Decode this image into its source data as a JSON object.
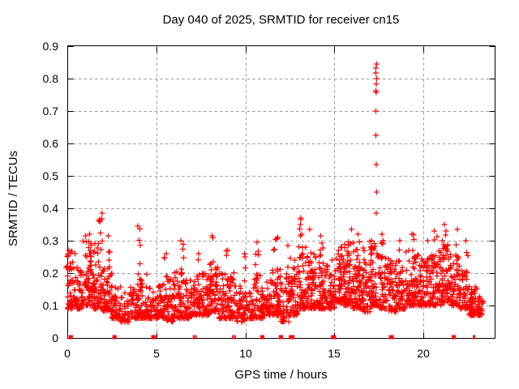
{
  "window": {
    "title": "Day 040 of 2025, SRMTID for receiver cn15"
  },
  "chart_data": {
    "type": "scatter",
    "title": "Day 040 of 2025, SRMTID for receiver cn15",
    "xlabel": "GPS time / hours",
    "ylabel": "SRMTID / TECUs",
    "xlim": [
      0,
      24
    ],
    "ylim": [
      0,
      0.9
    ],
    "xticks": [
      0,
      5,
      10,
      15,
      20
    ],
    "xtick_labels": [
      "0",
      "5",
      "10",
      "15",
      "20"
    ],
    "yticks": [
      0,
      0.1,
      0.2,
      0.3,
      0.4,
      0.5,
      0.6,
      0.7,
      0.8,
      0.9
    ],
    "ytick_labels": [
      "0",
      "0.1",
      "0.2",
      "0.3",
      "0.4",
      "0.5",
      "0.6",
      "0.7",
      "0.8",
      "0.9"
    ],
    "grid": true,
    "legend": "none",
    "marker": {
      "shape": "plus",
      "color": "#ff0000",
      "size": 7
    },
    "axis_color": "#000000",
    "grid_color": "#9b9b9b",
    "background": "#ffffff",
    "seed": 20250409,
    "spike": {
      "t": 17.35,
      "values": [
        0.845,
        0.832,
        0.818,
        0.8,
        0.784,
        0.763,
        0.757,
        0.7,
        0.625,
        0.535,
        0.45,
        0.385
      ]
    },
    "band_bins": [
      [
        0.0,
        0.5,
        55,
        0.09,
        0.27
      ],
      [
        0.5,
        1.0,
        50,
        0.09,
        0.22
      ],
      [
        1.0,
        1.5,
        55,
        0.1,
        0.3
      ],
      [
        1.5,
        2.0,
        55,
        0.09,
        0.3
      ],
      [
        2.0,
        2.5,
        48,
        0.08,
        0.24
      ],
      [
        2.5,
        3.0,
        45,
        0.06,
        0.16
      ],
      [
        3.0,
        3.5,
        40,
        0.05,
        0.14
      ],
      [
        3.5,
        4.0,
        45,
        0.06,
        0.16
      ],
      [
        4.0,
        4.5,
        48,
        0.06,
        0.2
      ],
      [
        4.5,
        5.0,
        45,
        0.06,
        0.16
      ],
      [
        5.0,
        5.5,
        45,
        0.06,
        0.17
      ],
      [
        5.5,
        6.0,
        48,
        0.05,
        0.19
      ],
      [
        6.0,
        6.5,
        50,
        0.06,
        0.21
      ],
      [
        6.5,
        7.0,
        45,
        0.06,
        0.18
      ],
      [
        7.0,
        7.5,
        45,
        0.07,
        0.18
      ],
      [
        7.5,
        8.0,
        48,
        0.07,
        0.2
      ],
      [
        8.0,
        8.5,
        50,
        0.08,
        0.23
      ],
      [
        8.5,
        9.0,
        45,
        0.06,
        0.2
      ],
      [
        9.0,
        9.5,
        48,
        0.06,
        0.21
      ],
      [
        9.5,
        10.0,
        45,
        0.05,
        0.17
      ],
      [
        10.0,
        10.5,
        45,
        0.06,
        0.16
      ],
      [
        10.5,
        11.0,
        48,
        0.06,
        0.2
      ],
      [
        11.0,
        11.5,
        45,
        0.07,
        0.18
      ],
      [
        11.5,
        12.0,
        50,
        0.07,
        0.23
      ],
      [
        12.0,
        12.5,
        45,
        0.05,
        0.2
      ],
      [
        12.5,
        13.0,
        50,
        0.07,
        0.24
      ],
      [
        13.0,
        13.5,
        55,
        0.09,
        0.28
      ],
      [
        13.5,
        14.0,
        50,
        0.09,
        0.26
      ],
      [
        14.0,
        14.5,
        52,
        0.09,
        0.26
      ],
      [
        14.5,
        15.0,
        48,
        0.09,
        0.24
      ],
      [
        15.0,
        15.5,
        55,
        0.11,
        0.28
      ],
      [
        15.5,
        16.0,
        60,
        0.1,
        0.3
      ],
      [
        16.0,
        16.5,
        60,
        0.09,
        0.3
      ],
      [
        16.5,
        17.0,
        55,
        0.08,
        0.28
      ],
      [
        17.0,
        17.5,
        55,
        0.1,
        0.3
      ],
      [
        17.5,
        18.0,
        50,
        0.09,
        0.27
      ],
      [
        18.0,
        18.5,
        52,
        0.08,
        0.26
      ],
      [
        18.5,
        19.0,
        48,
        0.09,
        0.25
      ],
      [
        19.0,
        19.5,
        52,
        0.1,
        0.28
      ],
      [
        19.5,
        20.0,
        52,
        0.1,
        0.28
      ],
      [
        20.0,
        20.5,
        52,
        0.1,
        0.26
      ],
      [
        20.5,
        21.0,
        52,
        0.1,
        0.27
      ],
      [
        21.0,
        21.5,
        58,
        0.11,
        0.3
      ],
      [
        21.5,
        22.0,
        52,
        0.1,
        0.28
      ],
      [
        22.0,
        22.5,
        46,
        0.09,
        0.24
      ],
      [
        22.5,
        23.0,
        50,
        0.07,
        0.16
      ],
      [
        23.0,
        23.35,
        32,
        0.07,
        0.13
      ]
    ],
    "columns": [
      [
        0.05,
        0.27,
        5
      ],
      [
        1.0,
        0.315,
        8
      ],
      [
        1.3,
        0.32,
        7
      ],
      [
        1.85,
        0.385,
        10
      ],
      [
        2.3,
        0.315,
        7
      ],
      [
        4.05,
        0.345,
        9
      ],
      [
        5.5,
        0.26,
        6
      ],
      [
        6.45,
        0.3,
        7
      ],
      [
        7.3,
        0.26,
        5
      ],
      [
        8.1,
        0.315,
        8
      ],
      [
        9.0,
        0.27,
        6
      ],
      [
        10.05,
        0.26,
        5
      ],
      [
        10.65,
        0.295,
        7
      ],
      [
        11.7,
        0.31,
        8
      ],
      [
        12.45,
        0.285,
        6
      ],
      [
        13.1,
        0.37,
        10
      ],
      [
        13.7,
        0.335,
        8
      ],
      [
        14.3,
        0.315,
        7
      ],
      [
        15.9,
        0.335,
        8
      ],
      [
        16.35,
        0.32,
        7
      ],
      [
        17.05,
        0.3,
        6
      ],
      [
        17.7,
        0.32,
        7
      ],
      [
        18.6,
        0.3,
        6
      ],
      [
        19.45,
        0.32,
        7
      ],
      [
        20.15,
        0.3,
        6
      ],
      [
        20.65,
        0.33,
        7
      ],
      [
        21.25,
        0.35,
        8
      ],
      [
        21.9,
        0.335,
        7
      ],
      [
        22.4,
        0.3,
        6
      ]
    ],
    "rug": [
      [
        0.2,
        5
      ],
      [
        2.65,
        5
      ],
      [
        4.85,
        6
      ],
      [
        7.1,
        2
      ],
      [
        7.22,
        2
      ],
      [
        9.3,
        2
      ],
      [
        9.42,
        2
      ],
      [
        10.95,
        5
      ],
      [
        12.0,
        5
      ],
      [
        12.6,
        7
      ],
      [
        14.95,
        6
      ],
      [
        18.2,
        6
      ],
      [
        21.7,
        5
      ],
      [
        22.85,
        3
      ]
    ]
  }
}
